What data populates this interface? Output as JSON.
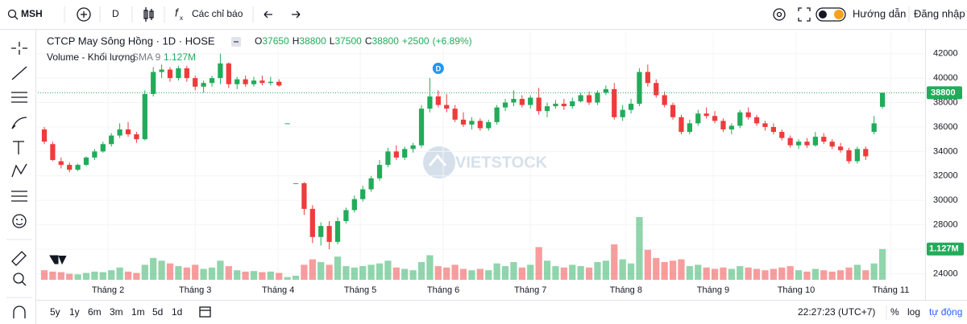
{
  "toolbar": {
    "symbol": "MSH",
    "interval": "D",
    "indicators": "Các chỉ báo",
    "guide": "Hướng dẫn",
    "login": "Đăng nhập"
  },
  "chart_data": {
    "type": "candlestick",
    "title": "CTCP May Sông Hồng · 1D · HOSE",
    "legend": {
      "o": "O",
      "h": "H",
      "l": "L",
      "c": "C",
      "change": {
        "value": 2500,
        "label": "+2500"
      },
      "change_pct": {
        "value": 6.89,
        "label": "(+6.89%)"
      }
    },
    "volume_name": "Volume - Khối lượng",
    "sma_label": "SMA 9",
    "volume_last_label": "1.127M",
    "watermark": "VIETSTOCK",
    "up_color": "#22ab5a",
    "down_color": "#ef3b3b",
    "grid": true,
    "last_price_line": true,
    "xlim": [
      -0.48,
      104.8
    ],
    "xticks": [
      {
        "value": 7.6,
        "label": "Tháng 2"
      },
      {
        "value": 18.0,
        "label": "Tháng 3"
      },
      {
        "value": 27.9,
        "label": "Tháng 4"
      },
      {
        "value": 37.7,
        "label": "Tháng 5"
      },
      {
        "value": 47.6,
        "label": "Tháng 6"
      },
      {
        "value": 58.0,
        "label": "Tháng 7"
      },
      {
        "value": 69.4,
        "label": "Tháng 8"
      },
      {
        "value": 79.8,
        "label": "Tháng 9"
      },
      {
        "value": 89.7,
        "label": "Tháng 10"
      },
      {
        "value": 101.0,
        "label": "Tháng 11"
      }
    ],
    "ylim": [
      23500,
      43100
    ],
    "yticks": [
      24000,
      26000,
      28000,
      30000,
      32000,
      34000,
      36000,
      38000,
      40000,
      42000
    ],
    "events": [
      {
        "label": "D",
        "x": 47
      }
    ],
    "ohlc": [
      [
        35800,
        36000,
        34600,
        34800
      ],
      [
        34600,
        34800,
        33200,
        33300
      ],
      [
        33200,
        33500,
        32600,
        32900
      ],
      [
        32900,
        33100,
        32300,
        32500
      ],
      [
        32500,
        33000,
        32400,
        32900
      ],
      [
        32900,
        33600,
        32800,
        33500
      ],
      [
        33500,
        34200,
        33300,
        34000
      ],
      [
        34000,
        34800,
        33900,
        34600
      ],
      [
        34600,
        35500,
        34400,
        35300
      ],
      [
        35300,
        36300,
        35100,
        35800
      ],
      [
        35800,
        36400,
        35200,
        35400
      ],
      [
        35400,
        35600,
        34700,
        35000
      ],
      [
        35000,
        39000,
        34900,
        38700
      ],
      [
        38700,
        40900,
        38500,
        40500
      ],
      [
        40500,
        41100,
        40000,
        40700
      ],
      [
        40700,
        40900,
        39700,
        40000
      ],
      [
        40000,
        41000,
        39800,
        40800
      ],
      [
        40800,
        41000,
        39700,
        40000
      ],
      [
        40000,
        40200,
        39000,
        39300
      ],
      [
        39300,
        39800,
        38800,
        39600
      ],
      [
        39600,
        40200,
        39300,
        40000
      ],
      [
        40000,
        42000,
        39500,
        41200
      ],
      [
        41200,
        41300,
        39200,
        39500
      ],
      [
        39500,
        40100,
        39100,
        39900
      ],
      [
        39900,
        40200,
        39300,
        39500
      ],
      [
        39500,
        40100,
        39300,
        39800
      ],
      [
        39800,
        40200,
        39400,
        39600
      ],
      [
        39600,
        40100,
        39400,
        39700
      ],
      [
        39700,
        39900,
        39300,
        39400
      ],
      [
        36300,
        36300,
        36300,
        36300
      ],
      [
        31400,
        31400,
        31400,
        31400
      ],
      [
        31400,
        31500,
        28800,
        29300
      ],
      [
        29300,
        29600,
        26500,
        27000
      ],
      [
        27000,
        28200,
        26300,
        27900
      ],
      [
        27900,
        28300,
        26000,
        26600
      ],
      [
        26600,
        28600,
        26400,
        28300
      ],
      [
        28300,
        29400,
        28100,
        29200
      ],
      [
        29200,
        30400,
        29000,
        30100
      ],
      [
        30100,
        31200,
        29900,
        30900
      ],
      [
        30900,
        32000,
        30700,
        31800
      ],
      [
        31800,
        33300,
        31600,
        32900
      ],
      [
        32900,
        34300,
        32700,
        34000
      ],
      [
        34000,
        34500,
        33300,
        33500
      ],
      [
        33500,
        34400,
        33300,
        34200
      ],
      [
        34200,
        34700,
        33900,
        34500
      ],
      [
        34500,
        37800,
        34300,
        37500
      ],
      [
        37500,
        40000,
        37200,
        38500
      ],
      [
        38500,
        39000,
        37600,
        37800
      ],
      [
        37800,
        38700,
        37200,
        37500
      ],
      [
        37500,
        37800,
        36400,
        36600
      ],
      [
        36600,
        37200,
        36000,
        36200
      ],
      [
        36200,
        36800,
        35800,
        36500
      ],
      [
        36500,
        36700,
        35700,
        35900
      ],
      [
        35900,
        36600,
        35700,
        36400
      ],
      [
        36400,
        37800,
        36200,
        37600
      ],
      [
        37600,
        38300,
        37300,
        38000
      ],
      [
        38000,
        39000,
        37700,
        38300
      ],
      [
        38300,
        38600,
        37600,
        37800
      ],
      [
        37800,
        38600,
        37500,
        38400
      ],
      [
        38400,
        39200,
        37000,
        37300
      ],
      [
        37300,
        38000,
        36800,
        37700
      ],
      [
        37700,
        38200,
        37500,
        37900
      ],
      [
        37900,
        38300,
        37400,
        37700
      ],
      [
        37700,
        38400,
        37500,
        38100
      ],
      [
        38100,
        38800,
        38000,
        38600
      ],
      [
        38600,
        38900,
        37800,
        38000
      ],
      [
        38000,
        39000,
        37800,
        38800
      ],
      [
        38800,
        39400,
        38600,
        39100
      ],
      [
        39100,
        39600,
        36600,
        36800
      ],
      [
        36800,
        37800,
        36500,
        37400
      ],
      [
        37400,
        38300,
        37100,
        37900
      ],
      [
        37900,
        40800,
        37700,
        40500
      ],
      [
        40500,
        41100,
        39300,
        39600
      ],
      [
        39600,
        39900,
        38400,
        38600
      ],
      [
        38600,
        38900,
        37600,
        37800
      ],
      [
        37800,
        38000,
        36600,
        36800
      ],
      [
        36800,
        37000,
        35400,
        35600
      ],
      [
        35600,
        36600,
        35400,
        36300
      ],
      [
        36300,
        37400,
        36100,
        37100
      ],
      [
        37100,
        37600,
        36700,
        36900
      ],
      [
        36900,
        37300,
        36300,
        36500
      ],
      [
        36500,
        36700,
        35600,
        35800
      ],
      [
        35800,
        36300,
        35400,
        36100
      ],
      [
        36100,
        37400,
        35900,
        37200
      ],
      [
        37200,
        37600,
        36600,
        36800
      ],
      [
        36800,
        37000,
        36100,
        36300
      ],
      [
        36300,
        36500,
        35700,
        36000
      ],
      [
        36000,
        36300,
        35400,
        35600
      ],
      [
        35600,
        35800,
        34900,
        35100
      ],
      [
        35100,
        35300,
        34300,
        34500
      ],
      [
        34500,
        35000,
        34200,
        34800
      ],
      [
        34800,
        35100,
        34300,
        34500
      ],
      [
        34500,
        35600,
        34400,
        35200
      ],
      [
        35200,
        35500,
        34600,
        34800
      ],
      [
        34800,
        35000,
        34200,
        34400
      ],
      [
        34400,
        34700,
        33900,
        34100
      ],
      [
        34100,
        34300,
        33000,
        33200
      ],
      [
        33200,
        34400,
        33000,
        34200
      ],
      [
        34200,
        34400,
        33300,
        33600
      ],
      [
        35600,
        36900,
        35400,
        36300
      ],
      [
        37650,
        38800,
        37500,
        38800
      ]
    ],
    "volume": [
      0.35,
      0.3,
      0.28,
      0.22,
      0.2,
      0.25,
      0.3,
      0.28,
      0.35,
      0.45,
      0.3,
      0.25,
      0.55,
      0.8,
      0.7,
      0.6,
      0.5,
      0.45,
      0.55,
      0.4,
      0.45,
      0.7,
      0.5,
      0.35,
      0.3,
      0.32,
      0.28,
      0.3,
      0.25,
      0.1,
      0.15,
      0.55,
      0.75,
      0.65,
      0.55,
      0.85,
      0.5,
      0.45,
      0.5,
      0.55,
      0.6,
      0.7,
      0.45,
      0.4,
      0.35,
      0.65,
      0.9,
      0.5,
      0.45,
      0.55,
      0.4,
      0.35,
      0.4,
      0.35,
      0.6,
      0.5,
      0.65,
      0.45,
      0.55,
      1.2,
      0.7,
      0.5,
      0.45,
      0.55,
      0.5,
      0.45,
      0.65,
      0.7,
      1.3,
      0.75,
      0.6,
      2.3,
      1.1,
      0.8,
      0.65,
      0.7,
      0.75,
      0.5,
      0.55,
      0.45,
      0.4,
      0.45,
      0.4,
      0.5,
      0.45,
      0.4,
      0.35,
      0.4,
      0.45,
      0.5,
      0.35,
      0.3,
      0.4,
      0.35,
      0.3,
      0.35,
      0.45,
      0.55,
      0.35,
      0.6,
      1.127
    ]
  },
  "bottom": {
    "ranges": [
      "5y",
      "1y",
      "6m",
      "3m",
      "1m",
      "5d",
      "1d"
    ],
    "clock": "22:27:23 (UTC+7)",
    "percent": "%",
    "log": "log",
    "auto": "tự động"
  }
}
